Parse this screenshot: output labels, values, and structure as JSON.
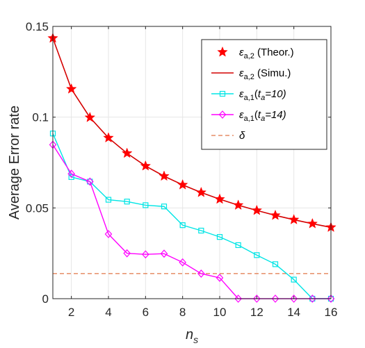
{
  "chart_data": {
    "type": "line",
    "xlabel": "n",
    "xlabel_sub": "s",
    "ylabel": "Average Error rate",
    "xlim": [
      1,
      16
    ],
    "ylim": [
      0,
      0.15
    ],
    "xticks": [
      2,
      4,
      6,
      8,
      10,
      12,
      14,
      16
    ],
    "yticks": [
      0,
      0.05,
      0.1,
      0.15
    ],
    "ytick_labels": [
      "0",
      "0.05",
      "0.1",
      "0.15"
    ],
    "grid": true,
    "legend_position": "top-right",
    "x": [
      1,
      2,
      3,
      4,
      5,
      6,
      7,
      8,
      9,
      10,
      11,
      12,
      13,
      14,
      15,
      16
    ],
    "series": [
      {
        "name": "ε_{a,2} (Theor.)",
        "legend": {
          "sym": "ε",
          "sub": "a,2",
          "text": " (Theor.)",
          "italic": ""
        },
        "style": "markers",
        "marker": "star",
        "color": "#ff0000",
        "values": [
          0.1435,
          0.1155,
          0.0998,
          0.0886,
          0.0801,
          0.0731,
          0.0675,
          0.0627,
          0.0585,
          0.0548,
          0.0515,
          0.0486,
          0.0459,
          0.0435,
          0.0413,
          0.0393
        ]
      },
      {
        "name": "ε_{a,2} (Simu.)",
        "legend": {
          "sym": "ε",
          "sub": "a,2",
          "text": " (Simu.)",
          "italic": ""
        },
        "style": "line",
        "marker": "none",
        "color": "#d40000",
        "values": [
          0.1435,
          0.1155,
          0.0998,
          0.0886,
          0.0801,
          0.0731,
          0.0675,
          0.0627,
          0.0585,
          0.0548,
          0.0515,
          0.0486,
          0.0459,
          0.0435,
          0.0413,
          0.0393
        ]
      },
      {
        "name": "ε_{a,1}(t_a=10)",
        "legend": {
          "sym": "ε",
          "sub": "a,1",
          "text": "(t",
          "tsub": "a",
          "italic": "=10)"
        },
        "style": "line-markers",
        "marker": "square",
        "color": "#00e5e5",
        "values": [
          0.091,
          0.067,
          0.0645,
          0.0545,
          0.0535,
          0.0515,
          0.0508,
          0.0405,
          0.0375,
          0.034,
          0.0295,
          0.024,
          0.019,
          0.0105,
          0.0,
          0.0
        ]
      },
      {
        "name": "ε_{a,1}(t_a=14)",
        "legend": {
          "sym": "ε",
          "sub": "a,1",
          "text": "(t",
          "tsub": "a",
          "italic": "=14)"
        },
        "style": "line-markers",
        "marker": "diamond",
        "color": "#ff00ff",
        "values": [
          0.0848,
          0.0688,
          0.0645,
          0.0356,
          0.025,
          0.0244,
          0.0248,
          0.02,
          0.0138,
          0.0115,
          0.0,
          0.0,
          0.0,
          0.0,
          0.0,
          0.0
        ]
      },
      {
        "name": "δ",
        "legend": {
          "sym": "δ",
          "sub": "",
          "text": "",
          "italic": ""
        },
        "style": "dashed",
        "marker": "none",
        "color": "#d95319",
        "values": [
          0.0138,
          0.0138,
          0.0138,
          0.0138,
          0.0138,
          0.0138,
          0.0138,
          0.0138,
          0.0138,
          0.0138,
          0.0138,
          0.0138,
          0.0138,
          0.0138,
          0.0138,
          0.0138
        ]
      }
    ]
  }
}
